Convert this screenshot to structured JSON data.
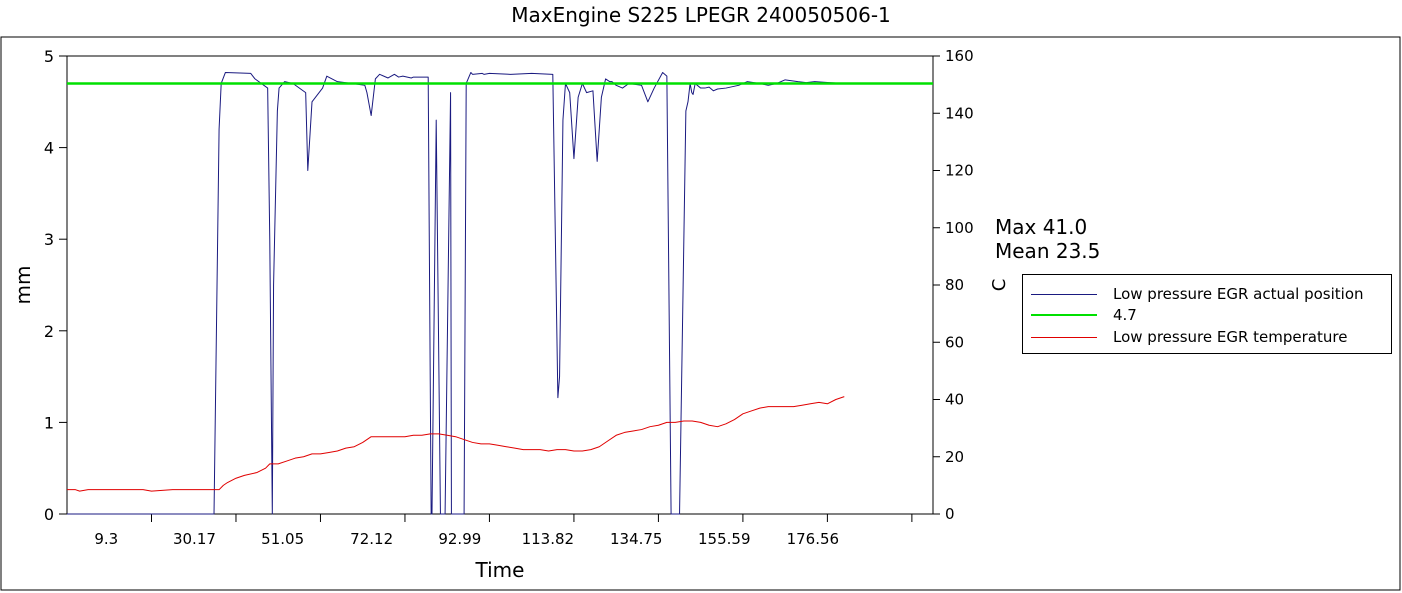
{
  "chart_data": {
    "type": "line",
    "title": "MaxEngine S225  LPEGR 240050506-1",
    "xlabel": "Time",
    "ylabel_left": "mm",
    "ylabel_right": "C",
    "xlim": [
      0,
      205
    ],
    "x_tick_labels": [
      "9.3",
      "30.17",
      "51.05",
      "72.12",
      "92.99",
      "113.82",
      "134.75",
      "155.59",
      "176.56"
    ],
    "x_tick_label_values": [
      9.3,
      30.17,
      51.05,
      72.12,
      92.99,
      113.82,
      134.75,
      155.59,
      176.56
    ],
    "x_minor_ticks": [
      20,
      40,
      60,
      80,
      100,
      120,
      140,
      160,
      180,
      200
    ],
    "ylim_left": [
      0,
      5
    ],
    "y_ticks_left": [
      "0",
      "1",
      "2",
      "3",
      "4",
      "5"
    ],
    "ylim_right": [
      0,
      160
    ],
    "y_ticks_right": [
      "0",
      "20",
      "40",
      "60",
      "80",
      "100",
      "120",
      "140",
      "160"
    ],
    "grid": false,
    "legend_position": "right",
    "annotations": {
      "max": "Max  41.0",
      "mean": "Mean  23.5"
    },
    "series": [
      {
        "name": "Low pressure EGR actual position",
        "axis": "left",
        "color": "#1a1a80",
        "x": [
          0,
          34.8,
          36.0,
          36.5,
          37.5,
          43.5,
          44.5,
          47.5,
          48.0,
          48.6,
          48.9,
          49.8,
          50.2,
          51.5,
          53.5,
          56.5,
          57.0,
          58.0,
          60.5,
          61.5,
          64.0,
          67.5,
          70.5,
          71.0,
          72.0,
          73.0,
          74.0,
          76.0,
          77.5,
          78.5,
          79.5,
          81.5,
          82.0,
          85.5,
          86.2,
          86.4,
          87.4,
          88.4,
          88.8,
          89.5,
          90.8,
          91.0,
          94.0,
          94.5,
          95.6,
          96.0,
          98.3,
          98.7,
          100.0,
          105.0,
          110.0,
          115.0,
          116.2,
          116.6,
          117.4,
          118.0,
          119.0,
          120.0,
          121.0,
          122.0,
          123.0,
          124.5,
          125.5,
          126.5,
          127.5,
          128.5,
          129.0,
          130.0,
          131.5,
          133.0,
          136.0,
          137.5,
          139.0,
          141.0,
          142.0,
          143.0,
          144.0,
          145.0,
          146.5,
          147.0,
          147.5,
          147.9,
          148.2,
          148.7,
          150.0,
          151.0,
          152.0,
          153.0,
          154.0,
          156.0,
          159.0,
          161.0,
          164.0,
          166.0,
          168.0,
          170.0,
          173.0,
          175.0,
          177.0,
          180.0,
          184.0
        ],
        "values": [
          0,
          0,
          4.2,
          4.7,
          4.82,
          4.81,
          4.75,
          4.65,
          3.0,
          0.0,
          2.5,
          4.4,
          4.65,
          4.72,
          4.7,
          4.6,
          3.75,
          4.5,
          4.65,
          4.78,
          4.72,
          4.7,
          4.68,
          4.6,
          4.35,
          4.75,
          4.8,
          4.76,
          4.8,
          4.77,
          4.78,
          4.76,
          4.77,
          4.77,
          0.0,
          0.0,
          4.3,
          0.0,
          0.0,
          0.0,
          4.6,
          0.0,
          0.0,
          4.7,
          4.82,
          4.8,
          4.81,
          4.8,
          4.81,
          4.8,
          4.81,
          4.8,
          1.27,
          1.5,
          4.3,
          4.7,
          4.6,
          3.88,
          4.55,
          4.7,
          4.6,
          4.62,
          3.85,
          4.55,
          4.75,
          4.72,
          4.72,
          4.68,
          4.65,
          4.7,
          4.68,
          4.5,
          4.65,
          4.82,
          4.78,
          0.0,
          0.0,
          0.0,
          4.4,
          4.5,
          4.7,
          4.6,
          4.58,
          4.7,
          4.65,
          4.65,
          4.66,
          4.62,
          4.64,
          4.65,
          4.68,
          4.72,
          4.7,
          4.68,
          4.7,
          4.74,
          4.72,
          4.71,
          4.72,
          4.71,
          4.7
        ]
      },
      {
        "name": "4.7",
        "axis": "left",
        "color": "#00e000",
        "x": [
          0,
          205
        ],
        "values": [
          4.7,
          4.7
        ]
      },
      {
        "name": "Low pressure EGR temperature",
        "axis": "right",
        "color": "#e00000",
        "x": [
          0,
          2,
          3,
          5,
          10,
          15,
          18,
          20,
          25,
          30,
          35,
          36,
          37,
          38,
          40,
          42,
          45,
          47,
          48,
          50,
          52,
          54,
          56,
          58,
          60,
          62,
          64,
          66,
          68,
          70,
          72,
          74,
          76,
          78,
          80,
          82,
          84,
          86,
          88,
          90,
          92,
          94,
          96,
          98,
          100,
          102,
          104,
          106,
          108,
          110,
          112,
          114,
          116,
          118,
          120,
          122,
          124,
          126,
          128,
          130,
          132,
          134,
          136,
          138,
          140,
          142,
          144,
          146,
          148,
          150,
          152,
          154,
          156,
          158,
          160,
          162,
          164,
          166,
          168,
          170,
          172,
          174,
          176,
          178,
          180,
          182,
          184
        ],
        "values": [
          8.5,
          8.5,
          8,
          8.5,
          8.5,
          8.5,
          8.5,
          8,
          8.5,
          8.5,
          8.5,
          8.5,
          10,
          11,
          12.5,
          13.5,
          14.5,
          16,
          17.5,
          17.5,
          18.5,
          19.5,
          20,
          21,
          21,
          21.5,
          22,
          23,
          23.5,
          25,
          27,
          27,
          27,
          27,
          27,
          27.5,
          27.5,
          28,
          28,
          27.5,
          27,
          26,
          25,
          24.5,
          24.5,
          24,
          23.5,
          23,
          22.5,
          22.5,
          22.5,
          22,
          22.5,
          22.5,
          22,
          22,
          22.5,
          23.5,
          25.5,
          27.5,
          28.5,
          29,
          29.5,
          30.5,
          31,
          32,
          32,
          32.5,
          32.5,
          32,
          31,
          30.5,
          31.5,
          33,
          35,
          36,
          37,
          37.5,
          37.5,
          37.5,
          37.5,
          38,
          38.5,
          39,
          38.5,
          40,
          41
        ]
      }
    ]
  }
}
